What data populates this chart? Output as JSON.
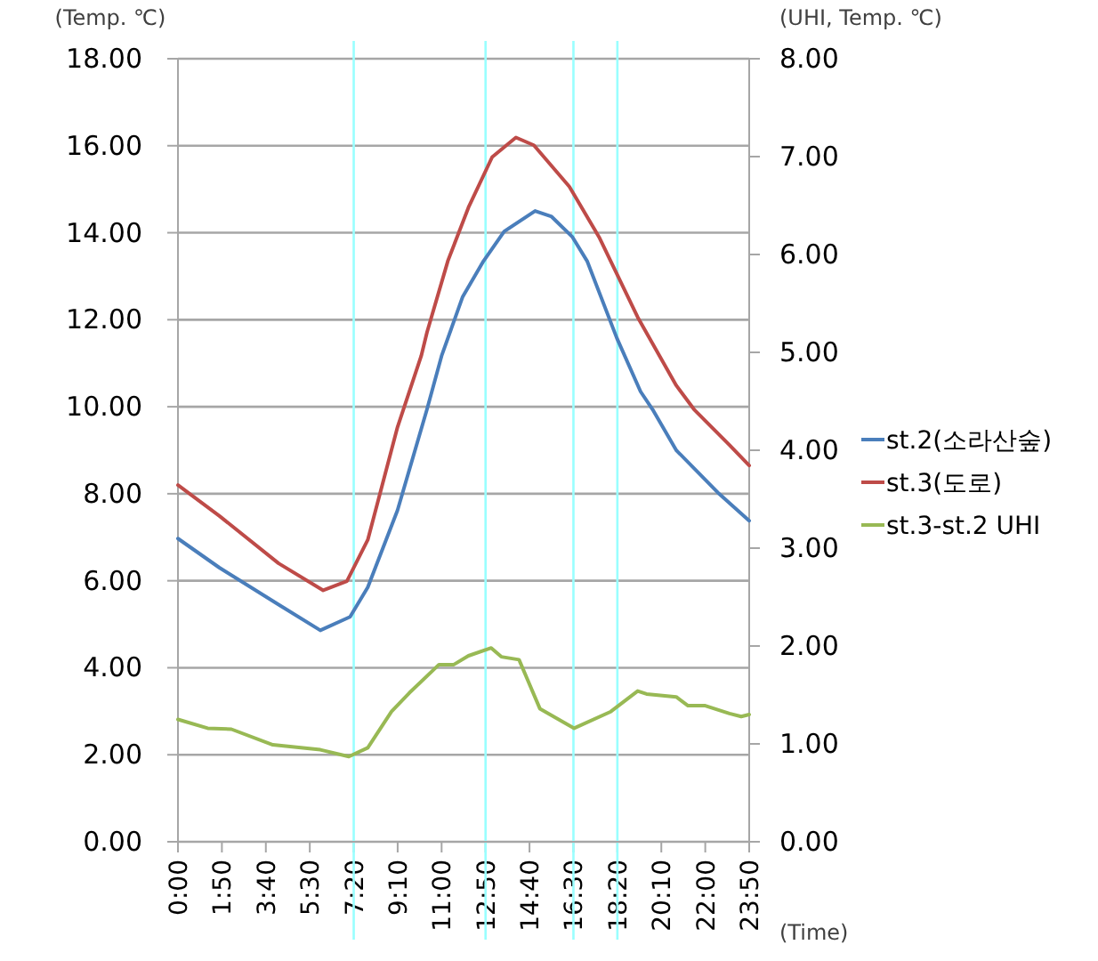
{
  "chart_data": {
    "type": "line",
    "ylabel": "(Temp. ℃)",
    "y2label": "(UHI, Temp. ℃)",
    "xlabel": "(Time)",
    "xlim": [
      0,
      23.8333
    ],
    "xticks": [
      {
        "value": 0,
        "label": "0:00"
      },
      {
        "value": 1.8333,
        "label": "1:50"
      },
      {
        "value": 3.6667,
        "label": "3:40"
      },
      {
        "value": 5.5,
        "label": "5:30"
      },
      {
        "value": 7.3333,
        "label": "7:20"
      },
      {
        "value": 9.1667,
        "label": "9:10"
      },
      {
        "value": 11,
        "label": "11:00"
      },
      {
        "value": 12.8333,
        "label": "12:50"
      },
      {
        "value": 14.6667,
        "label": "14:40"
      },
      {
        "value": 16.5,
        "label": "16:30"
      },
      {
        "value": 18.3333,
        "label": "18:20"
      },
      {
        "value": 20.1667,
        "label": "20:10"
      },
      {
        "value": 22,
        "label": "22:00"
      },
      {
        "value": 23.8333,
        "label": "23:50"
      }
    ],
    "ylim": [
      0,
      18
    ],
    "yticks": [
      {
        "value": 0,
        "label": "0.00"
      },
      {
        "value": 2,
        "label": "2.00"
      },
      {
        "value": 4,
        "label": "4.00"
      },
      {
        "value": 6,
        "label": "6.00"
      },
      {
        "value": 8,
        "label": "8.00"
      },
      {
        "value": 10,
        "label": "10.00"
      },
      {
        "value": 12,
        "label": "12.00"
      },
      {
        "value": 14,
        "label": "14.00"
      },
      {
        "value": 16,
        "label": "16.00"
      },
      {
        "value": 18,
        "label": "18.00"
      }
    ],
    "y2lim": [
      0,
      8
    ],
    "y2ticks": [
      {
        "value": 0,
        "label": "0.00"
      },
      {
        "value": 1,
        "label": "1.00"
      },
      {
        "value": 2,
        "label": "2.00"
      },
      {
        "value": 3,
        "label": "3.00"
      },
      {
        "value": 4,
        "label": "4.00"
      },
      {
        "value": 5,
        "label": "5.00"
      },
      {
        "value": 6,
        "label": "6.00"
      },
      {
        "value": 7,
        "label": "7.00"
      },
      {
        "value": 8,
        "label": "8.00"
      }
    ],
    "grid": "y",
    "legend": "right",
    "ref_lines": [
      {
        "axis": "x",
        "value": 7.3333,
        "color": "#99ffff"
      },
      {
        "axis": "x",
        "value": 12.8333,
        "color": "#99ffff"
      },
      {
        "axis": "x",
        "value": 16.5,
        "color": "#99ffff"
      },
      {
        "axis": "x",
        "value": 18.3333,
        "color": "#99ffff"
      }
    ],
    "series": [
      {
        "name": "st.2(소라산숲)",
        "color": "#4a7ebb",
        "x": [
          0,
          1.73,
          4.2,
          5.94,
          7.18,
          7.92,
          9.16,
          10.39,
          11.0,
          11.88,
          12.75,
          13.61,
          14.9,
          15.59,
          16.46,
          17.07,
          18.31,
          19.3,
          19.8,
          20.79,
          22.52,
          23.8333
        ],
        "values": [
          6.97,
          6.3,
          5.45,
          4.86,
          5.17,
          5.85,
          7.62,
          9.94,
          11.17,
          12.53,
          13.35,
          14.03,
          14.5,
          14.37,
          13.9,
          13.35,
          11.58,
          10.35,
          9.94,
          9.0,
          8.03,
          7.38
        ]
      },
      {
        "name": "st.3(도로)",
        "color": "#be4b48",
        "x": [
          0,
          1.73,
          4.2,
          6.06,
          7.05,
          7.92,
          9.16,
          10.15,
          10.39,
          11.26,
          12.12,
          13.11,
          14.1,
          14.85,
          16.33,
          17.57,
          19.18,
          20.79,
          21.53,
          23.01,
          23.8333
        ],
        "values": [
          8.2,
          7.49,
          6.4,
          5.78,
          5.99,
          6.94,
          9.53,
          11.17,
          11.71,
          13.35,
          14.58,
          15.74,
          16.19,
          16.01,
          15.06,
          13.9,
          12.06,
          10.49,
          9.94,
          9.12,
          8.65
        ]
      },
      {
        "name": "st.3-st.2 UHI",
        "color": "#98b954",
        "axis": "y2",
        "x": [
          0,
          1.24,
          2.23,
          3.96,
          5.94,
          7.13,
          7.92,
          8.91,
          9.65,
          10.89,
          11.51,
          12.12,
          13.07,
          13.49,
          14.23,
          15.1,
          16.53,
          18.06,
          19.18,
          19.55,
          20.79,
          21.28,
          22.0,
          23.01,
          23.5,
          23.8333
        ],
        "values": [
          1.25,
          1.16,
          1.15,
          0.99,
          0.94,
          0.87,
          0.96,
          1.33,
          1.52,
          1.81,
          1.81,
          1.9,
          1.98,
          1.89,
          1.86,
          1.36,
          1.16,
          1.33,
          1.54,
          1.51,
          1.48,
          1.39,
          1.39,
          1.31,
          1.28,
          1.3
        ]
      }
    ]
  }
}
